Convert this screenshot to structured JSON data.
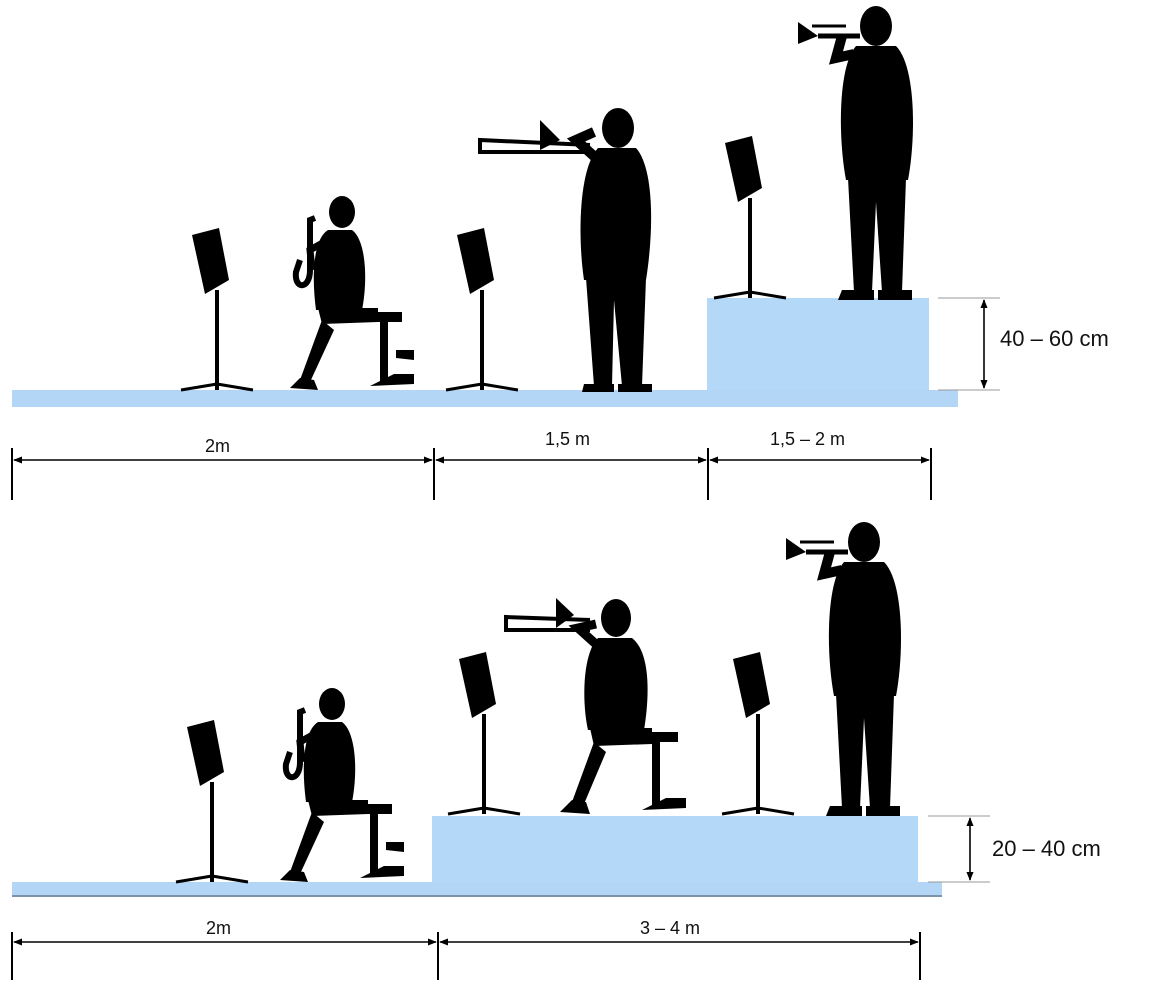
{
  "colors": {
    "floor": "#b3d6f7",
    "riser": "#b3d8f8",
    "floor_edge": "#7f93a8",
    "silhouette": "#000000",
    "dimension_line": "#000000"
  },
  "top_setup": {
    "labels": {
      "segment_1": "2m",
      "segment_2": "1,5 m",
      "segment_3": "1,5 – 2 m",
      "riser_height": "40 – 60 cm"
    },
    "performers": [
      {
        "instrument": "saxophone",
        "posture": "seated",
        "level": "floor"
      },
      {
        "instrument": "trombone",
        "posture": "standing",
        "level": "floor"
      },
      {
        "instrument": "trumpet",
        "posture": "standing",
        "level": "riser"
      }
    ]
  },
  "bottom_setup": {
    "labels": {
      "segment_1": "2m",
      "segment_2": "3 – 4 m",
      "riser_height": "20 – 40 cm"
    },
    "performers": [
      {
        "instrument": "saxophone",
        "posture": "seated",
        "level": "floor"
      },
      {
        "instrument": "trombone",
        "posture": "seated",
        "level": "riser"
      },
      {
        "instrument": "trumpet",
        "posture": "standing",
        "level": "riser"
      }
    ]
  }
}
